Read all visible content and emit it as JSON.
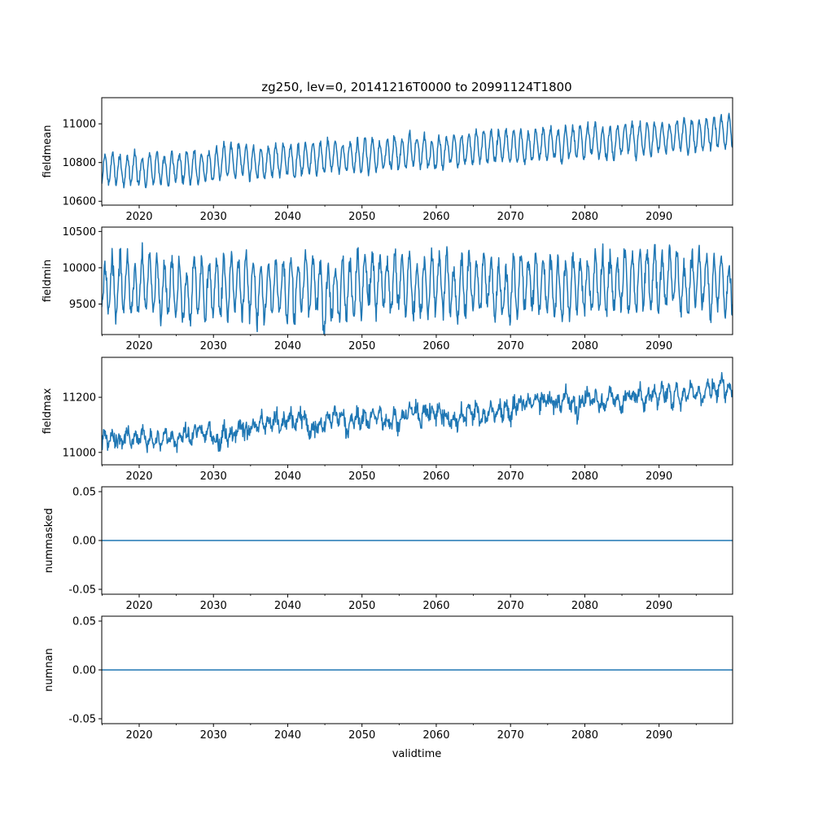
{
  "figure": {
    "title": "zg250, lev=0, 20141216T0000 to 20991124T1800",
    "xlabel": "validtime"
  },
  "style": {
    "line_color": "#1f77b4",
    "axis_color": "#000000",
    "background": "#ffffff"
  },
  "chart_data": [
    {
      "type": "line",
      "ylabel": "fieldmean",
      "xlim": [
        2014.96,
        2099.9
      ],
      "ylim": [
        10580,
        11135
      ],
      "x_ticks": [
        2020,
        2030,
        2040,
        2050,
        2060,
        2070,
        2080,
        2090
      ],
      "y_ticks": [
        10600,
        10800,
        11000
      ],
      "series": [
        {
          "values_description_free": true,
          "trend_start": 10755,
          "trend_end": 10955,
          "seasonal_amplitude": 80,
          "noise": 18,
          "x_start": 2014.96,
          "x_end": 2099.9
        }
      ]
    },
    {
      "type": "line",
      "ylabel": "fieldmin",
      "xlim": [
        2014.96,
        2099.9
      ],
      "ylim": [
        9080,
        10560
      ],
      "x_ticks": [
        2020,
        2030,
        2040,
        2050,
        2060,
        2070,
        2080,
        2090
      ],
      "y_ticks": [
        9500,
        10000,
        10500
      ],
      "series": [
        {
          "trend_start": 9700,
          "trend_end": 9800,
          "seasonal_amplitude": 380,
          "noise": 130,
          "x_start": 2014.96,
          "x_end": 2099.9
        }
      ]
    },
    {
      "type": "line",
      "ylabel": "fieldmax",
      "xlim": [
        2014.96,
        2099.9
      ],
      "ylim": [
        10955,
        11345
      ],
      "x_ticks": [
        2020,
        2030,
        2040,
        2050,
        2060,
        2070,
        2080,
        2090
      ],
      "y_ticks": [
        11000,
        11200
      ],
      "series": [
        {
          "trend_start": 11040,
          "trend_end": 11230,
          "seasonal_amplitude": 20,
          "noise": 28,
          "x_start": 2014.96,
          "x_end": 2099.9
        }
      ]
    },
    {
      "type": "line",
      "ylabel": "nummasked",
      "xlim": [
        2014.96,
        2099.9
      ],
      "ylim": [
        -0.055,
        0.055
      ],
      "x_ticks": [
        2020,
        2030,
        2040,
        2050,
        2060,
        2070,
        2080,
        2090
      ],
      "y_ticks": [
        -0.05,
        0.0,
        0.05
      ],
      "series": [
        {
          "constant": 0.0,
          "x_start": 2014.96,
          "x_end": 2099.9
        }
      ]
    },
    {
      "type": "line",
      "ylabel": "numnan",
      "xlim": [
        2014.96,
        2099.9
      ],
      "ylim": [
        -0.055,
        0.055
      ],
      "x_ticks": [
        2020,
        2030,
        2040,
        2050,
        2060,
        2070,
        2080,
        2090
      ],
      "y_ticks": [
        -0.05,
        0.0,
        0.05
      ],
      "series": [
        {
          "constant": 0.0,
          "x_start": 2014.96,
          "x_end": 2099.9
        }
      ]
    }
  ]
}
